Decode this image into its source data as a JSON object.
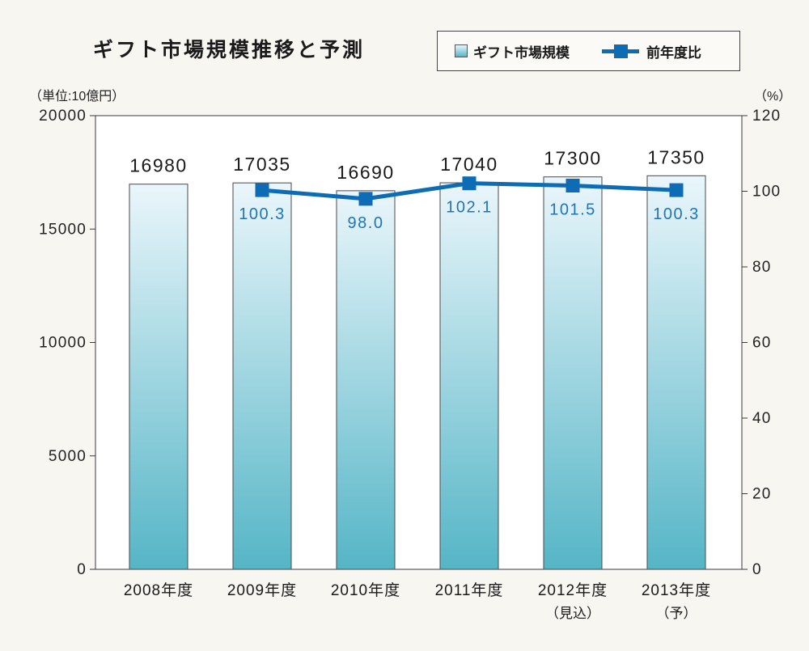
{
  "page": {
    "background": "#f7f6f1"
  },
  "chart_data": {
    "type": "bar",
    "title": "ギフト市場規模推移と予測",
    "ylabel": "（単位:10億円）",
    "y2label": "（%）",
    "categories": [
      "2008年度",
      "2009年度",
      "2010年度",
      "2011年度",
      "2012年度",
      "2013年度"
    ],
    "category_notes": [
      null,
      null,
      null,
      null,
      "（見込）",
      "（予）"
    ],
    "ylim": [
      0,
      20000
    ],
    "y2lim": [
      0,
      120
    ],
    "yticks": [
      0,
      5000,
      10000,
      15000,
      20000
    ],
    "y2ticks": [
      0,
      20,
      40,
      60,
      80,
      100,
      120
    ],
    "grid": false,
    "legend": "top-right",
    "series": [
      {
        "name": "ギフト市場規模",
        "type": "bar",
        "axis": "left",
        "values": [
          16980,
          17035,
          16690,
          17040,
          17300,
          17350
        ],
        "color_top": "#eaf6fb",
        "color_bottom": "#55b5c6"
      },
      {
        "name": "前年度比",
        "type": "line",
        "axis": "right",
        "values": [
          null,
          100.3,
          98.0,
          102.1,
          101.5,
          100.3
        ],
        "data_labels": [
          null,
          "100.3",
          "98.0",
          "102.1",
          "101.5",
          "100.3"
        ],
        "color": "#0d6cb4",
        "label_color": "#1f74b8"
      }
    ]
  }
}
